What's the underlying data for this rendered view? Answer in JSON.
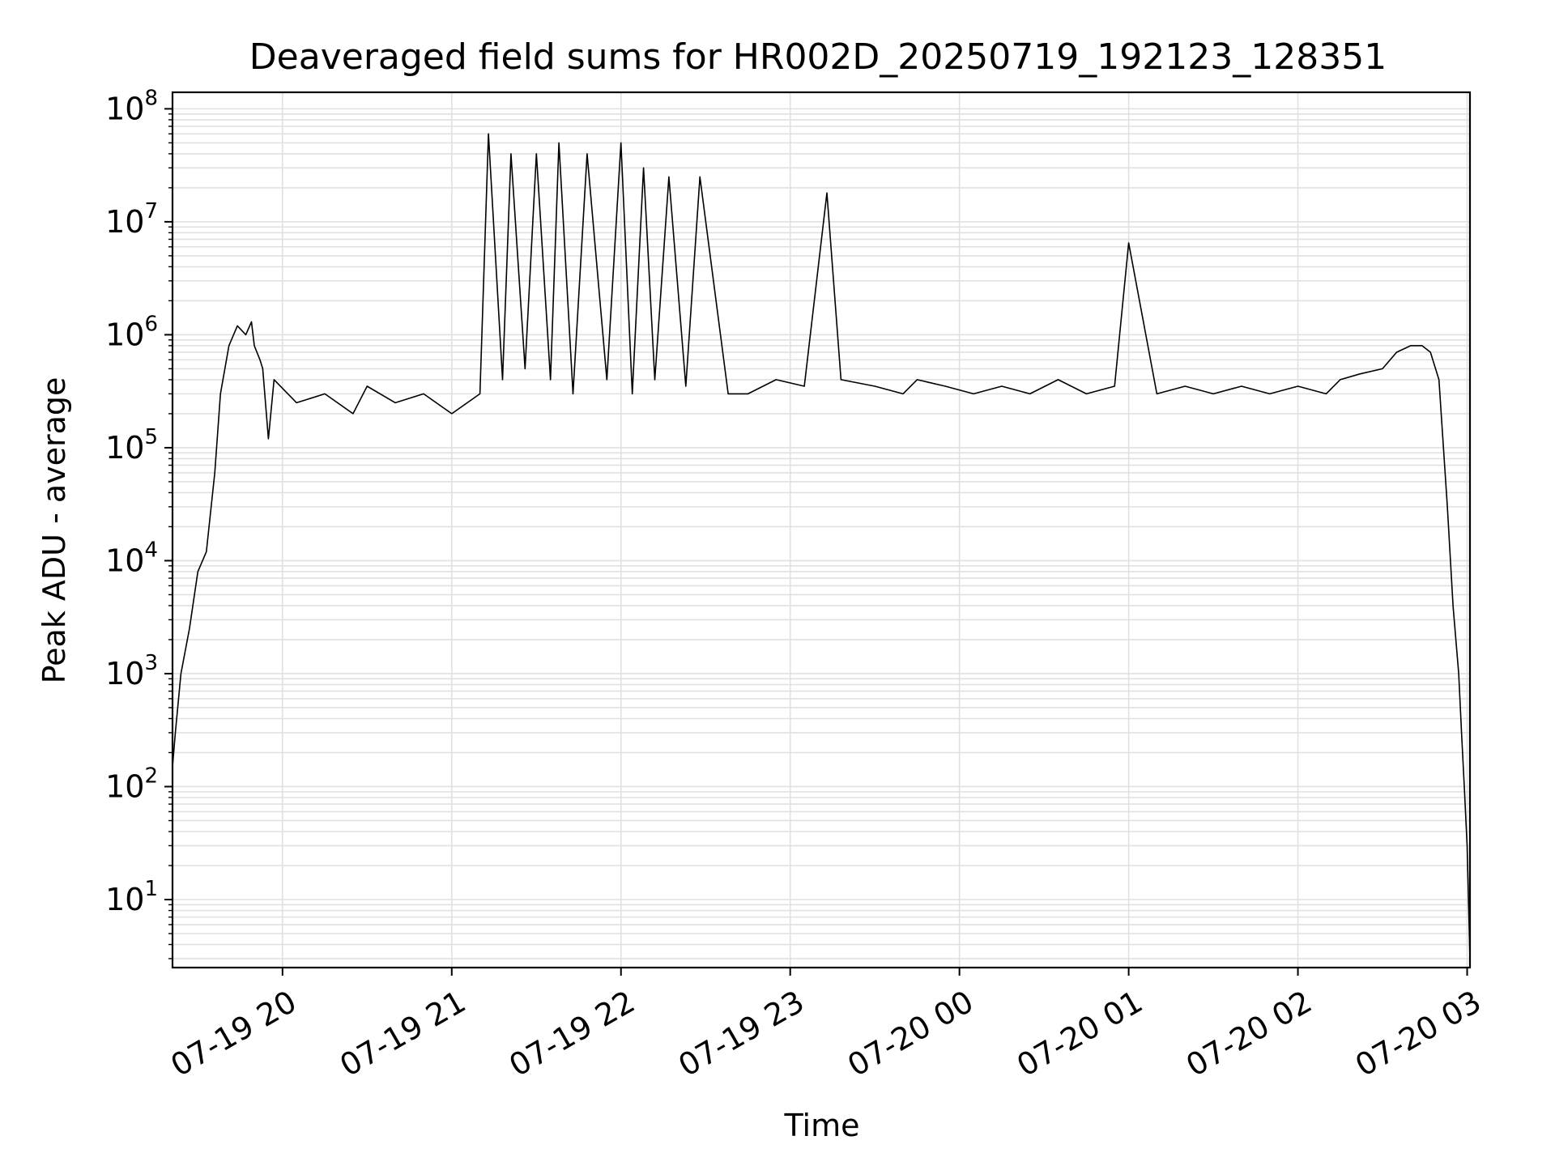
{
  "chart_data": {
    "type": "line",
    "title": "Deaveraged field sums for HR002D_20250719_192123_128351",
    "xlabel": "Time",
    "ylabel": "Peak ADU - average",
    "yscale": "log",
    "ylim": [
      2.5,
      140000000
    ],
    "xlim": [
      "2025-07-19 19:21",
      "2025-07-20 03:01"
    ],
    "grid": true,
    "line_color": "#000000",
    "grid_color": "#e0e0e0",
    "x_ticks": [
      "2025-07-19 20:00",
      "2025-07-19 21:00",
      "2025-07-19 22:00",
      "2025-07-19 23:00",
      "2025-07-20 00:00",
      "2025-07-20 01:00",
      "2025-07-20 02:00",
      "2025-07-20 03:00"
    ],
    "x_tick_labels": [
      "07-19 20",
      "07-19 21",
      "07-19 22",
      "07-19 23",
      "07-20 00",
      "07-20 01",
      "07-20 02",
      "07-20 03"
    ],
    "y_tick_labels": [
      {
        "base": "10",
        "exp": "1",
        "value": 10
      },
      {
        "base": "10",
        "exp": "2",
        "value": 100
      },
      {
        "base": "10",
        "exp": "3",
        "value": 1000
      },
      {
        "base": "10",
        "exp": "4",
        "value": 10000
      },
      {
        "base": "10",
        "exp": "5",
        "value": 100000
      },
      {
        "base": "10",
        "exp": "6",
        "value": 1000000
      },
      {
        "base": "10",
        "exp": "7",
        "value": 10000000
      },
      {
        "base": "10",
        "exp": "8",
        "value": 100000000
      }
    ],
    "series": [
      {
        "x": [
          "2025-07-19 19:21",
          "2025-07-19 19:22",
          "2025-07-19 19:24",
          "2025-07-19 19:27",
          "2025-07-19 19:30",
          "2025-07-19 19:33",
          "2025-07-19 19:36",
          "2025-07-19 19:38",
          "2025-07-19 19:41",
          "2025-07-19 19:44",
          "2025-07-19 19:47",
          "2025-07-19 19:49",
          "2025-07-19 19:50",
          "2025-07-19 19:52",
          "2025-07-19 19:53",
          "2025-07-19 19:55",
          "2025-07-19 19:57",
          "2025-07-19 20:05",
          "2025-07-19 20:15",
          "2025-07-19 20:25",
          "2025-07-19 20:30",
          "2025-07-19 20:40",
          "2025-07-19 20:50",
          "2025-07-19 21:00",
          "2025-07-19 21:10",
          "2025-07-19 21:13",
          "2025-07-19 21:18",
          "2025-07-19 21:21",
          "2025-07-19 21:26",
          "2025-07-19 21:30",
          "2025-07-19 21:35",
          "2025-07-19 21:38",
          "2025-07-19 21:43",
          "2025-07-19 21:48",
          "2025-07-19 21:55",
          "2025-07-19 22:00",
          "2025-07-19 22:04",
          "2025-07-19 22:08",
          "2025-07-19 22:12",
          "2025-07-19 22:17",
          "2025-07-19 22:23",
          "2025-07-19 22:28",
          "2025-07-19 22:38",
          "2025-07-19 22:45",
          "2025-07-19 22:55",
          "2025-07-19 23:05",
          "2025-07-19 23:13",
          "2025-07-19 23:18",
          "2025-07-19 23:30",
          "2025-07-19 23:40",
          "2025-07-19 23:45",
          "2025-07-19 23:55",
          "2025-07-20 00:05",
          "2025-07-20 00:15",
          "2025-07-20 00:25",
          "2025-07-20 00:35",
          "2025-07-20 00:45",
          "2025-07-20 00:55",
          "2025-07-20 01:00",
          "2025-07-20 01:10",
          "2025-07-20 01:20",
          "2025-07-20 01:30",
          "2025-07-20 01:40",
          "2025-07-20 01:50",
          "2025-07-20 02:00",
          "2025-07-20 02:10",
          "2025-07-20 02:15",
          "2025-07-20 02:22",
          "2025-07-20 02:30",
          "2025-07-20 02:35",
          "2025-07-20 02:40",
          "2025-07-20 02:44",
          "2025-07-20 02:47",
          "2025-07-20 02:50",
          "2025-07-20 02:53",
          "2025-07-20 02:55",
          "2025-07-20 02:57",
          "2025-07-20 02:58",
          "2025-07-20 02:59",
          "2025-07-20 03:00",
          "2025-07-20 03:01"
        ],
        "values": [
          150,
          300,
          1000,
          2500,
          8000,
          12000,
          60000,
          300000,
          800000,
          1200000,
          1000000,
          1300000,
          800000,
          600000,
          500000,
          120000,
          400000,
          250000,
          300000,
          200000,
          350000,
          250000,
          300000,
          200000,
          300000,
          60000000,
          400000,
          40000000,
          500000,
          40000000,
          400000,
          50000000,
          300000,
          40000000,
          400000,
          50000000,
          300000,
          30000000,
          400000,
          25000000,
          350000,
          25000000,
          300000,
          300000,
          400000,
          350000,
          18000000,
          400000,
          350000,
          300000,
          400000,
          350000,
          300000,
          350000,
          300000,
          400000,
          300000,
          350000,
          6500000,
          300000,
          350000,
          300000,
          350000,
          300000,
          350000,
          300000,
          400000,
          450000,
          500000,
          700000,
          800000,
          800000,
          700000,
          400000,
          30000,
          4000,
          1000,
          300,
          100,
          30,
          3
        ]
      }
    ]
  }
}
